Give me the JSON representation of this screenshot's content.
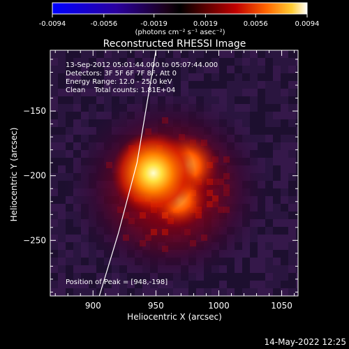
{
  "chart_data": {
    "type": "heatmap",
    "title": "Reconstructed RHESSI Image",
    "xlabel": "Heliocentric X (arcsec)",
    "ylabel": "Heliocentric Y (arcsec)",
    "x_ticks": [
      900,
      950,
      1000,
      1050
    ],
    "y_ticks": [
      -150,
      -200,
      -250
    ],
    "xlim": [
      866,
      1063
    ],
    "ylim": [
      -293,
      -103
    ],
    "colorbar": {
      "ticks": [
        "-0.0094",
        "-0.0056",
        "-0.0019",
        "0.0019",
        "0.0056",
        "0.0094"
      ],
      "range": [
        -0.0094,
        0.0094
      ],
      "unit_label": "(photons cm⁻² s⁻¹ asec⁻²)"
    },
    "annotations": [
      "13-Sep-2012 05:01:44.000 to 05:07:44.000",
      "Detectors: 3F 5F 6F 7F 8F, Att 0",
      "Energy Range: 12.0 - 25.0 keV",
      "Clean    Total counts: 1.81E+04"
    ],
    "peak_label": "Position of Peak = [948,-198]",
    "peak": [
      948,
      -198
    ],
    "sources": [
      {
        "x": 948,
        "y": -198,
        "intensity": 1.0
      },
      {
        "x": 975,
        "y": -192,
        "intensity": 0.55
      },
      {
        "x": 968,
        "y": -218,
        "intensity": 0.45
      }
    ],
    "limb_curve": {
      "x": [
        905,
        920,
        935,
        950
      ],
      "y": [
        -293,
        -245,
        -190,
        -103
      ]
    },
    "grid": false
  },
  "footer": {
    "timestamp": "14-May-2022 12:25"
  }
}
